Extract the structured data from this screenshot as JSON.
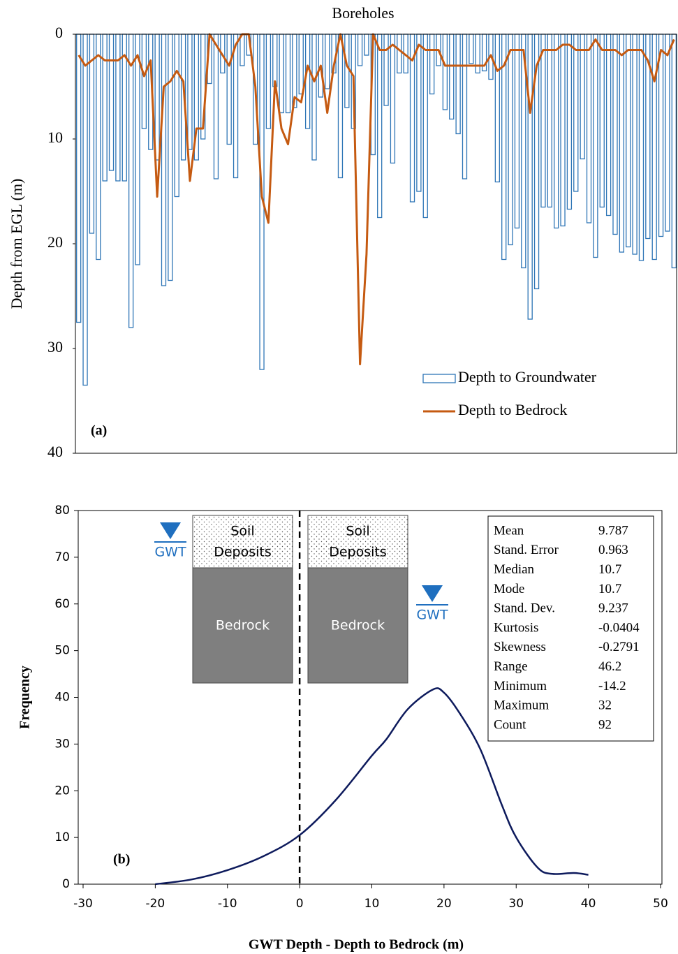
{
  "chart_data": [
    {
      "type": "bar",
      "title": "Boreholes",
      "y_label": "Depth from EGL (m)",
      "panel_label": "(a)",
      "categories": [
        null,
        null,
        null,
        null,
        null,
        null,
        null,
        null,
        null,
        null,
        null,
        null,
        null,
        null,
        null,
        null,
        null,
        null,
        null,
        null,
        null,
        null,
        null,
        null,
        null,
        null,
        null,
        null,
        null,
        null,
        null,
        null,
        null,
        null,
        null,
        null,
        null,
        null,
        null,
        null,
        null,
        null,
        null,
        null,
        null,
        null,
        null,
        null,
        null,
        null,
        null,
        null,
        null,
        null,
        null,
        null,
        null,
        null,
        null,
        null,
        null,
        null,
        null,
        null,
        null,
        null,
        null,
        null,
        null,
        null,
        null,
        null,
        null,
        null,
        null,
        null,
        null,
        null,
        null,
        null,
        null,
        null,
        null,
        null,
        null,
        null,
        null,
        null,
        null,
        null,
        null,
        null
      ],
      "series": [
        {
          "name": "Depth to Groundwater",
          "type": "bar",
          "color": "#2e75b6",
          "values": [
            27.5,
            33.5,
            19,
            21.5,
            14,
            13,
            14,
            14,
            28,
            22,
            9,
            11,
            12,
            24,
            23.5,
            15.5,
            12,
            11,
            12,
            10,
            4.7,
            13.8,
            3.7,
            10.5,
            13.7,
            3,
            2,
            10.5,
            32,
            9,
            5,
            7.5,
            7.5,
            7,
            5.7,
            9,
            12,
            6,
            5.2,
            3.7,
            13.7,
            7,
            9,
            3,
            2,
            11.5,
            17.5,
            6.8,
            12.3,
            3.7,
            3.7,
            16,
            15,
            17.5,
            5.7,
            3,
            7.2,
            8.1,
            9.5,
            13.8,
            2.8,
            3.7,
            3.5,
            4.3,
            14.1,
            21.5,
            20.1,
            18.5,
            22.3,
            27.2,
            24.3,
            16.5,
            16.5,
            18.5,
            18.3,
            16.7,
            15,
            11.9,
            18,
            21.3,
            16.5,
            17.3,
            19.1,
            20.8,
            20.3,
            21,
            21.6,
            19.5,
            21.5,
            19.3,
            18.8,
            22.3
          ]
        },
        {
          "name": "Depth to Bedrock",
          "type": "line",
          "color": "#c55a11",
          "values": [
            2,
            3,
            2.5,
            2,
            2.5,
            2.5,
            2.5,
            2,
            3,
            2,
            4,
            2.5,
            15.5,
            5,
            4.5,
            3.5,
            4.5,
            14,
            9,
            9,
            0,
            1,
            2,
            3,
            1,
            0,
            0,
            5,
            15.5,
            18,
            4.5,
            9,
            10.5,
            6,
            6.5,
            3,
            4.5,
            3,
            7.5,
            3,
            0,
            3,
            4,
            31.5,
            21,
            0,
            1.5,
            1.5,
            1,
            1.5,
            2,
            2.5,
            1,
            1.5,
            1.5,
            1.5,
            3,
            3,
            3,
            3,
            3,
            3,
            3,
            2,
            3.5,
            3,
            1.5,
            1.5,
            1.5,
            7.5,
            3,
            1.5,
            1.5,
            1.5,
            1,
            1,
            1.5,
            1.5,
            1.5,
            0.5,
            1.5,
            1.5,
            1.5,
            2,
            1.5,
            1.5,
            1.5,
            2.5,
            4.5,
            1.5,
            2,
            0.5
          ]
        }
      ],
      "ylim": [
        0,
        40
      ],
      "yticks": [
        0,
        10,
        20,
        30,
        40
      ],
      "y_reversed": true,
      "legend": "lower right"
    },
    {
      "type": "line",
      "x_label": "GWT Depth - Depth to Bedrock (m)",
      "y_label": "Frequency",
      "panel_label": "(b)",
      "x": [
        -20,
        -15,
        -10,
        -5,
        0,
        5,
        10,
        12,
        15,
        18.5,
        20,
        22,
        25,
        28,
        30,
        33,
        35,
        38,
        40
      ],
      "series": [
        {
          "color": "#0d1a5c",
          "values": [
            0,
            1,
            3,
            6,
            10.5,
            18,
            27.5,
            31,
            37.5,
            41.7,
            41,
            37,
            29,
            17,
            10,
            3.5,
            2.2,
            2.4,
            2
          ]
        }
      ],
      "xlim": [
        -30,
        50
      ],
      "xticks": [
        -30,
        -20,
        -10,
        0,
        10,
        20,
        30,
        40,
        50
      ],
      "ylim": [
        0,
        80
      ],
      "yticks": [
        0,
        10,
        20,
        30,
        40,
        50,
        60,
        70,
        80
      ],
      "reference_x": 0,
      "insets": [
        {
          "soil": [
            "Soil",
            "Deposits"
          ],
          "rock": "Bedrock",
          "gwt": "GWT"
        },
        {
          "soil": [
            "Soil",
            "Deposits"
          ],
          "rock": "Bedrock",
          "gwt": "GWT"
        }
      ],
      "stats": [
        {
          "label": "Mean",
          "value": 9.787
        },
        {
          "label": "Stand. Error",
          "value": 0.963
        },
        {
          "label": "Median",
          "value": 10.7
        },
        {
          "label": "Mode",
          "value": 10.7
        },
        {
          "label": "Stand. Dev.",
          "value": 9.237
        },
        {
          "label": "Kurtosis",
          "value": -0.0404
        },
        {
          "label": "Skewness",
          "value": -0.2791
        },
        {
          "label": "Range",
          "value": 46.2
        },
        {
          "label": "Minimum",
          "value": -14.2
        },
        {
          "label": "Maximum",
          "value": 32
        },
        {
          "label": "Count",
          "value": 92
        }
      ]
    }
  ]
}
